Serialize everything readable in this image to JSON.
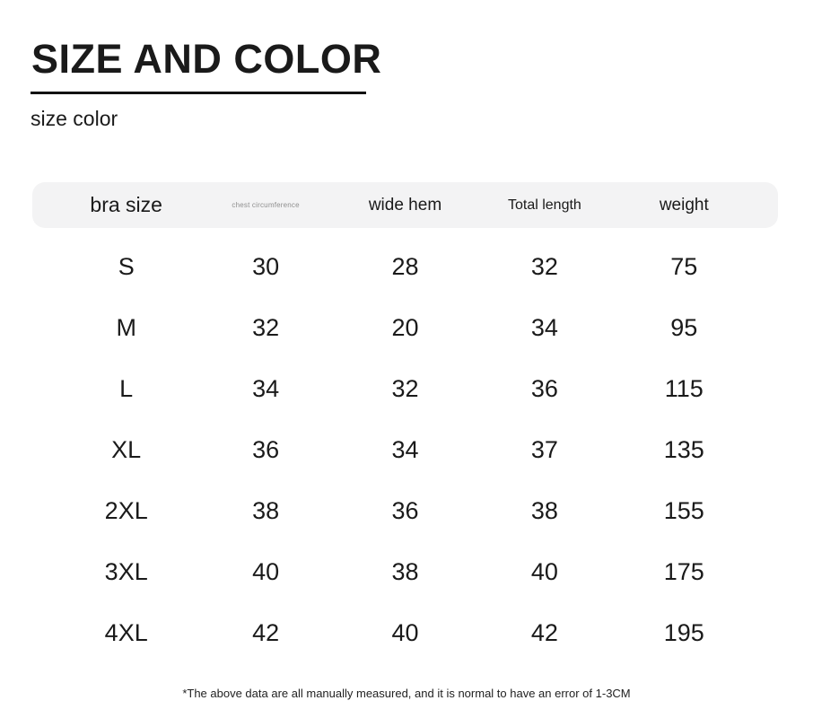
{
  "chart_data": {
    "type": "table",
    "title": "SIZE AND COLOR",
    "subtitle": "size color",
    "columns": [
      "bra size",
      "chest circumference",
      "wide hem",
      "Total length",
      "weight"
    ],
    "rows": [
      [
        "S",
        "30",
        "28",
        "32",
        "75"
      ],
      [
        "M",
        "32",
        "20",
        "34",
        "95"
      ],
      [
        "L",
        "34",
        "32",
        "36",
        "115"
      ],
      [
        "XL",
        "36",
        "34",
        "37",
        "135"
      ],
      [
        "2XL",
        "38",
        "36",
        "38",
        "155"
      ],
      [
        "3XL",
        "40",
        "38",
        "40",
        "175"
      ],
      [
        "4XL",
        "42",
        "40",
        "42",
        "195"
      ]
    ],
    "footnote": "*The above data are all manually measured, and it is normal to have an error of 1-3CM",
    "layout": {
      "legend": "none",
      "grid": "off",
      "header_style": "rounded-band"
    }
  },
  "colors": {
    "text": "#1a1a1a",
    "header_band": "#f3f3f4",
    "muted_header": "#8f8f8f",
    "underline": "#111111",
    "background": "#ffffff"
  }
}
